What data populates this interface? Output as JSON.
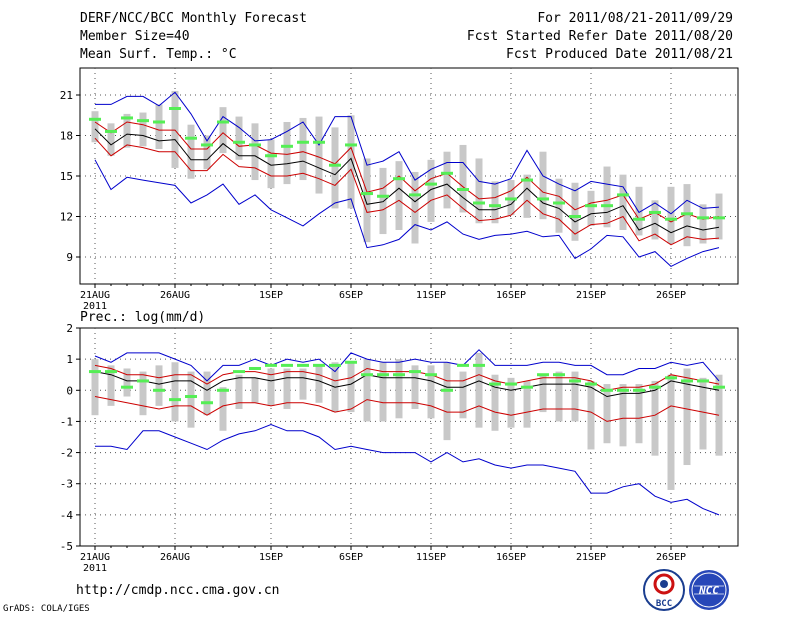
{
  "header": {
    "title": "DERF/NCC/BCC Monthly Forecast",
    "member_size": "Member Size=40",
    "variable": "Mean Surf. Temp.: °C",
    "period": "For 2011/08/21-2011/09/29",
    "start_date": "Fcst Started Refer Date 2011/08/20",
    "produced_date": "Fcst Produced Date 2011/08/21"
  },
  "footer": {
    "url": "http://cmdp.ncc.cma.gov.cn",
    "credit": "GrADS: COLA/IGES"
  },
  "logos": {
    "left_text": "BCC",
    "right_text": "NCC"
  },
  "colors": {
    "bar": "#c8c8c8",
    "median": "#55ee55",
    "mean": "#000000",
    "spread": "#cc0000",
    "extreme": "#0000cc",
    "grid": "#555555"
  },
  "chart_data": [
    {
      "type": "box-ensemble",
      "title": "Mean Surf. Temp.: °C",
      "xlabel_ticks": [
        "21AUG",
        "26AUG",
        "1SEP",
        "6SEP",
        "11SEP",
        "16SEP",
        "21SEP",
        "26SEP"
      ],
      "year_label": "2011",
      "ylim": [
        7,
        23
      ],
      "yticks": [
        9,
        12,
        15,
        18,
        21
      ],
      "days": 40,
      "series": {
        "bar_top": [
          19.8,
          18.9,
          19.6,
          19.7,
          20.3,
          21.3,
          18.8,
          18.0,
          20.1,
          19.4,
          18.9,
          17.7,
          19.0,
          19.3,
          19.4,
          18.6,
          19.5,
          16.3,
          15.6,
          16.1,
          15.3,
          16.2,
          16.8,
          17.3,
          16.3,
          14.6,
          14.7,
          15.1,
          16.8,
          14.8,
          14.5,
          13.9,
          15.7,
          15.1,
          14.2,
          13.2,
          14.2,
          14.4,
          12.9,
          13.7
        ],
        "bar_bottom": [
          17.5,
          16.5,
          17.1,
          17.2,
          17.0,
          15.6,
          14.8,
          15.5,
          16.7,
          16.2,
          14.7,
          14.1,
          14.4,
          14.7,
          13.7,
          12.6,
          12.6,
          10.1,
          10.7,
          11.0,
          10.0,
          11.6,
          12.6,
          12.3,
          11.5,
          11.5,
          12.1,
          11.9,
          11.8,
          10.8,
          10.2,
          11.3,
          11.2,
          11.0,
          10.6,
          10.3,
          10.0,
          9.8,
          10.0,
          10.3
        ],
        "median": [
          19.2,
          18.3,
          19.3,
          19.1,
          19.0,
          20.0,
          17.8,
          17.3,
          19.0,
          17.5,
          17.3,
          16.5,
          17.2,
          17.5,
          17.5,
          15.8,
          17.3,
          13.7,
          13.5,
          14.8,
          13.6,
          14.4,
          15.2,
          14.0,
          13.0,
          12.8,
          13.3,
          14.7,
          13.3,
          13.0,
          12.0,
          12.8,
          12.8,
          13.6,
          11.8,
          12.3,
          11.8,
          12.2,
          11.9,
          11.9
        ],
        "mean": [
          18.5,
          17.3,
          18.1,
          18.0,
          17.6,
          17.7,
          16.2,
          16.2,
          17.4,
          16.5,
          16.5,
          15.8,
          15.9,
          16.1,
          15.6,
          15.1,
          16.3,
          12.9,
          13.1,
          14.1,
          13.1,
          14.0,
          14.4,
          13.4,
          12.5,
          12.5,
          12.9,
          14.1,
          13.0,
          12.6,
          11.6,
          12.2,
          12.3,
          12.8,
          11.0,
          11.5,
          10.8,
          11.3,
          11.0,
          11.2
        ],
        "spread_top": [
          19.0,
          18.2,
          19.0,
          18.8,
          18.4,
          18.4,
          17.0,
          17.0,
          18.2,
          17.2,
          17.3,
          16.7,
          16.6,
          16.8,
          16.4,
          15.9,
          17.1,
          13.8,
          14.1,
          15.0,
          13.9,
          14.8,
          15.2,
          14.2,
          13.3,
          13.4,
          13.9,
          14.9,
          13.8,
          13.5,
          12.5,
          13.0,
          13.2,
          13.6,
          11.8,
          12.3,
          11.6,
          12.2,
          11.8,
          12.0
        ],
        "spread_bottom": [
          17.8,
          16.5,
          17.3,
          17.1,
          16.8,
          16.8,
          15.4,
          15.4,
          16.6,
          15.7,
          15.6,
          15.0,
          15.0,
          15.2,
          14.8,
          14.3,
          15.5,
          12.3,
          12.5,
          13.2,
          12.3,
          13.2,
          13.6,
          12.6,
          11.7,
          11.8,
          12.1,
          13.2,
          12.2,
          11.8,
          10.7,
          11.4,
          11.5,
          12.0,
          10.2,
          10.7,
          9.9,
          10.5,
          10.3,
          10.4
        ],
        "max": [
          20.3,
          20.3,
          20.9,
          20.9,
          20.2,
          21.2,
          19.6,
          17.6,
          19.4,
          18.6,
          17.6,
          17.7,
          18.3,
          19.0,
          17.3,
          19.4,
          19.4,
          15.8,
          16.1,
          16.8,
          14.7,
          15.5,
          16.0,
          16.0,
          14.6,
          14.4,
          14.8,
          16.9,
          15.0,
          14.4,
          13.9,
          14.6,
          14.4,
          14.2,
          12.3,
          13.0,
          12.2,
          13.2,
          12.6,
          12.7
        ],
        "min": [
          16.2,
          14.0,
          14.9,
          14.7,
          14.5,
          14.3,
          13.0,
          13.6,
          14.4,
          12.9,
          13.6,
          12.5,
          11.9,
          11.3,
          12.2,
          13.0,
          13.3,
          9.7,
          9.9,
          10.3,
          11.4,
          11.0,
          11.6,
          10.7,
          10.3,
          10.6,
          10.7,
          10.9,
          10.5,
          10.6,
          8.9,
          9.6,
          10.6,
          10.5,
          9.0,
          9.4,
          8.3,
          8.9,
          9.4,
          9.7
        ]
      }
    },
    {
      "type": "box-ensemble",
      "title": "Prec.: log(mm/d)",
      "xlabel_ticks": [
        "21AUG",
        "26AUG",
        "1SEP",
        "6SEP",
        "11SEP",
        "16SEP",
        "21SEP",
        "26SEP"
      ],
      "year_label": "2011",
      "ylim": [
        -5,
        2
      ],
      "yticks": [
        -5,
        -4,
        -3,
        -2,
        -1,
        0,
        1,
        2
      ],
      "days": 40,
      "series": {
        "bar_top": [
          1.0,
          0.8,
          0.7,
          0.6,
          0.8,
          0.9,
          0.6,
          0.6,
          0.1,
          0.5,
          0.4,
          0.7,
          0.7,
          0.7,
          0.8,
          0.9,
          0.9,
          1.0,
          0.9,
          1.0,
          0.8,
          0.8,
          0.9,
          0.6,
          1.2,
          0.5,
          0.4,
          0.3,
          0.5,
          0.6,
          0.6,
          0.3,
          0.2,
          0.2,
          0.2,
          0.3,
          0.5,
          0.7,
          0.4,
          0.5
        ],
        "bar_bottom": [
          -0.8,
          -0.5,
          -0.2,
          -0.8,
          -0.5,
          -1.0,
          -1.2,
          -0.8,
          -1.3,
          -0.6,
          -0.4,
          -0.5,
          -0.6,
          -0.3,
          -0.4,
          -0.7,
          -0.7,
          -1.0,
          -1.0,
          -0.9,
          -0.6,
          -0.9,
          -1.6,
          -0.9,
          -1.2,
          -1.3,
          -1.2,
          -1.2,
          -0.7,
          -1.0,
          -1.0,
          -1.9,
          -1.7,
          -1.8,
          -1.7,
          -2.1,
          -3.2,
          -2.4,
          -1.9,
          -2.1
        ],
        "median": [
          0.6,
          0.6,
          0.1,
          0.3,
          0.0,
          -0.3,
          -0.2,
          -0.4,
          0.0,
          0.6,
          0.7,
          0.8,
          0.8,
          0.8,
          0.8,
          0.8,
          0.9,
          0.5,
          0.5,
          0.5,
          0.6,
          0.5,
          0.0,
          0.8,
          0.8,
          0.2,
          0.2,
          0.1,
          0.5,
          0.5,
          0.3,
          0.2,
          0.0,
          0.0,
          0.0,
          0.1,
          0.4,
          0.3,
          0.3,
          0.1
        ],
        "mean": [
          0.6,
          0.5,
          0.3,
          0.3,
          0.2,
          0.3,
          0.3,
          0.0,
          0.3,
          0.4,
          0.4,
          0.3,
          0.4,
          0.4,
          0.3,
          0.1,
          0.2,
          0.5,
          0.4,
          0.4,
          0.4,
          0.3,
          0.1,
          0.1,
          0.3,
          0.1,
          0.0,
          0.1,
          0.2,
          0.2,
          0.2,
          0.1,
          -0.2,
          -0.1,
          -0.1,
          0.0,
          0.3,
          0.2,
          0.1,
          0.0
        ],
        "spread_top": [
          0.8,
          0.7,
          0.5,
          0.5,
          0.4,
          0.5,
          0.5,
          0.2,
          0.5,
          0.6,
          0.6,
          0.5,
          0.6,
          0.6,
          0.5,
          0.3,
          0.4,
          0.7,
          0.6,
          0.6,
          0.6,
          0.5,
          0.3,
          0.3,
          0.5,
          0.3,
          0.2,
          0.3,
          0.4,
          0.4,
          0.4,
          0.3,
          0.0,
          0.1,
          0.1,
          0.2,
          0.5,
          0.4,
          0.3,
          0.2
        ],
        "spread_bottom": [
          -0.2,
          -0.3,
          -0.4,
          -0.5,
          -0.6,
          -0.5,
          -0.5,
          -0.8,
          -0.5,
          -0.4,
          -0.4,
          -0.5,
          -0.4,
          -0.4,
          -0.5,
          -0.7,
          -0.6,
          -0.3,
          -0.4,
          -0.4,
          -0.4,
          -0.5,
          -0.7,
          -0.7,
          -0.5,
          -0.7,
          -0.8,
          -0.7,
          -0.6,
          -0.6,
          -0.6,
          -0.7,
          -1.0,
          -0.9,
          -0.9,
          -0.8,
          -0.5,
          -0.6,
          -0.7,
          -0.8
        ],
        "max": [
          1.1,
          0.9,
          1.2,
          1.2,
          1.2,
          1.0,
          0.8,
          0.3,
          0.8,
          0.8,
          1.0,
          0.8,
          1.0,
          0.9,
          1.0,
          0.6,
          1.2,
          1.0,
          0.9,
          0.9,
          1.0,
          0.9,
          0.9,
          0.8,
          1.3,
          0.8,
          0.8,
          0.8,
          0.9,
          0.9,
          0.8,
          0.8,
          0.5,
          0.5,
          0.7,
          0.7,
          0.9,
          0.8,
          0.9,
          0.3
        ],
        "min": [
          -1.8,
          -1.8,
          -1.9,
          -1.3,
          -1.3,
          -1.5,
          -1.7,
          -1.9,
          -1.6,
          -1.4,
          -1.3,
          -1.1,
          -1.3,
          -1.3,
          -1.5,
          -1.9,
          -1.8,
          -1.9,
          -2.0,
          -2.0,
          -2.0,
          -2.3,
          -2.0,
          -2.3,
          -2.2,
          -2.4,
          -2.5,
          -2.4,
          -2.4,
          -2.5,
          -2.6,
          -3.3,
          -3.3,
          -3.1,
          -3.0,
          -3.4,
          -3.6,
          -3.5,
          -3.8,
          -4.0
        ]
      }
    }
  ]
}
